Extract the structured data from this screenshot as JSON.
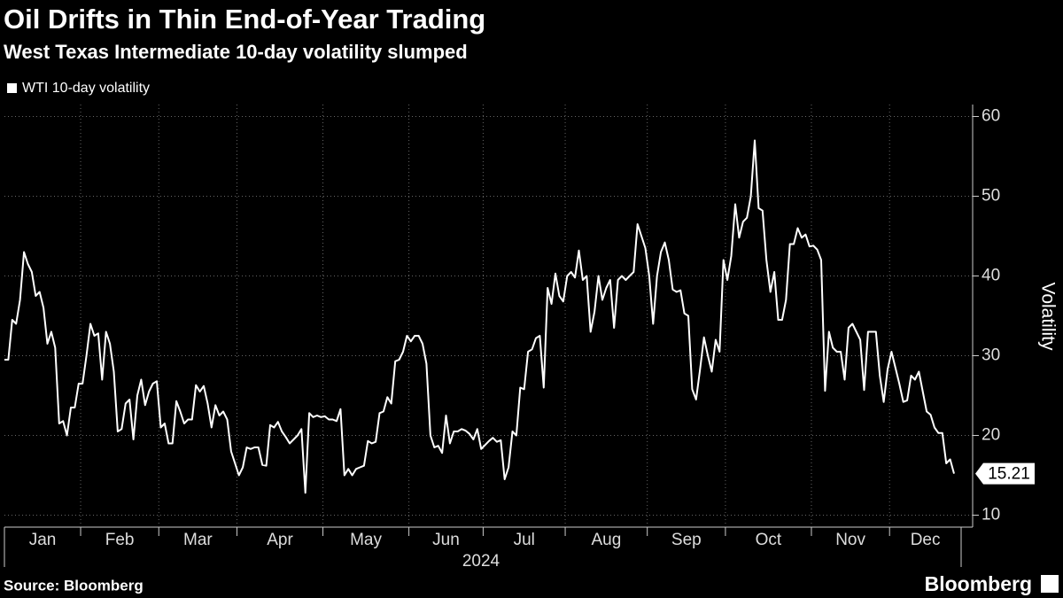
{
  "chart_data": {
    "type": "line",
    "title": "Oil Drifts in Thin End-of-Year Trading",
    "subtitle": "West Texas Intermediate 10-day volatility slumped",
    "ylabel": "Volatility",
    "xaxis_year": "2024",
    "source": "Source: Bloomberg",
    "brand": "Bloomberg",
    "categories": [
      "Jan",
      null,
      null,
      null,
      null,
      null,
      null,
      null,
      null,
      null,
      null,
      null,
      null,
      null,
      null,
      null,
      null,
      null,
      null,
      null,
      "Feb",
      null,
      null,
      null,
      null,
      null,
      null,
      null,
      null,
      null,
      null,
      null,
      null,
      null,
      null,
      null,
      null,
      null,
      null,
      null,
      "Mar",
      null,
      null,
      null,
      null,
      null,
      null,
      null,
      null,
      null,
      null,
      null,
      null,
      null,
      null,
      null,
      null,
      null,
      null,
      null,
      "Apr",
      null,
      null,
      null,
      null,
      null,
      null,
      null,
      null,
      null,
      null,
      null,
      null,
      null,
      null,
      null,
      null,
      null,
      null,
      null,
      null,
      null,
      "May",
      null,
      null,
      null,
      null,
      null,
      null,
      null,
      null,
      null,
      null,
      null,
      null,
      null,
      null,
      null,
      null,
      null,
      null,
      null,
      null,
      null,
      "Jun",
      null,
      null,
      null,
      null,
      null,
      null,
      null,
      null,
      null,
      null,
      null,
      null,
      null,
      null,
      null,
      null,
      null,
      null,
      "Jul",
      null,
      null,
      null,
      null,
      null,
      null,
      null,
      null,
      null,
      null,
      null,
      null,
      null,
      null,
      null,
      null,
      null,
      null,
      null,
      null,
      "Aug",
      null,
      null,
      null,
      null,
      null,
      null,
      null,
      null,
      null,
      null,
      null,
      null,
      null,
      null,
      null,
      null,
      null,
      null,
      null,
      null,
      "Sep",
      null,
      null,
      null,
      null,
      null,
      null,
      null,
      null,
      null,
      null,
      null,
      null,
      null,
      null,
      null,
      null,
      null,
      null,
      null,
      "Oct",
      null,
      null,
      null,
      null,
      null,
      null,
      null,
      null,
      null,
      null,
      null,
      null,
      null,
      null,
      null,
      null,
      null,
      null,
      null,
      null,
      null,
      "Nov",
      null,
      null,
      null,
      null,
      null,
      null,
      null,
      null,
      null,
      null,
      null,
      null,
      null,
      null,
      null,
      null,
      null,
      null,
      null,
      "Dec",
      null,
      null,
      null,
      null,
      null,
      null,
      null,
      null,
      null,
      null,
      null,
      null,
      null,
      null,
      null,
      null
    ],
    "series": [
      {
        "name": "WTI 10-day volatility",
        "color": "#ffffff",
        "values": [
          29.5,
          29.5,
          34.5,
          34,
          37,
          43,
          41.5,
          40.5,
          37.5,
          38,
          36,
          31.5,
          33,
          31,
          21.5,
          21.8,
          20,
          23.5,
          23.5,
          26.5,
          26.5,
          30,
          34,
          32.5,
          32.8,
          27,
          33,
          31.5,
          28,
          20.5,
          20.8,
          24,
          24.5,
          19.5,
          25,
          27,
          23.8,
          25.5,
          26.5,
          26.8,
          21,
          21.5,
          19,
          19,
          24.3,
          23,
          21.5,
          22,
          22,
          26.3,
          25.5,
          26.2,
          24,
          21,
          23.8,
          22.5,
          23,
          22,
          18,
          16.5,
          15,
          16,
          18.5,
          18.3,
          18.5,
          18.5,
          16.3,
          16.2,
          21.3,
          21,
          21.7,
          20.5,
          19.8,
          19,
          19.5,
          20,
          20.8,
          12.8,
          22.8,
          22.3,
          22.5,
          22.3,
          22.4,
          22,
          22,
          21.8,
          23.3,
          15,
          15.8,
          15,
          15.8,
          16,
          16.2,
          19.3,
          19,
          19.2,
          22.8,
          23,
          24.8,
          24,
          29.3,
          29.5,
          30.5,
          32.5,
          31.8,
          32.5,
          32.5,
          31.5,
          29,
          20,
          18.5,
          18.7,
          17.8,
          22.5,
          19,
          20.5,
          20.5,
          20.8,
          20.6,
          20.2,
          19.5,
          20.8,
          18.3,
          18.8,
          19.3,
          19.7,
          19.2,
          19.4,
          14.5,
          16,
          20.5,
          20,
          26,
          25.8,
          30.5,
          30.8,
          32.2,
          32.5,
          26,
          38.5,
          36.5,
          40.3,
          37.5,
          36.8,
          40,
          40.5,
          39.8,
          43.2,
          39.5,
          40,
          33,
          35.5,
          40,
          37,
          38.5,
          39.5,
          33.5,
          39.5,
          40,
          39.5,
          40,
          40.5,
          46.5,
          45,
          43.5,
          40,
          34,
          40,
          43,
          44.2,
          42,
          38.3,
          38,
          38.2,
          35.3,
          35,
          25.8,
          24.5,
          28.3,
          32.3,
          30,
          28,
          32,
          30.5,
          42,
          39.5,
          42.5,
          49,
          44.8,
          46.8,
          47.3,
          50,
          57,
          48.5,
          48.2,
          42,
          38,
          40.5,
          34.5,
          34.5,
          37,
          44,
          44,
          46,
          44.8,
          45.2,
          43.7,
          43.8,
          43.3,
          42,
          25.6,
          33,
          31,
          30.5,
          30.5,
          27,
          33.5,
          34,
          33,
          32,
          25.7,
          33,
          33,
          33,
          27.5,
          24.2,
          28.3,
          30.5,
          28.5,
          26.5,
          24.2,
          24.4,
          27.5,
          27,
          28,
          25.5,
          23,
          22.6,
          21,
          20.3,
          20.3,
          16.5,
          17,
          15.21
        ]
      }
    ],
    "ylim": [
      8.5,
      61.5
    ],
    "yticks": [
      10,
      20,
      30,
      40,
      50,
      60
    ],
    "grid": true
  }
}
